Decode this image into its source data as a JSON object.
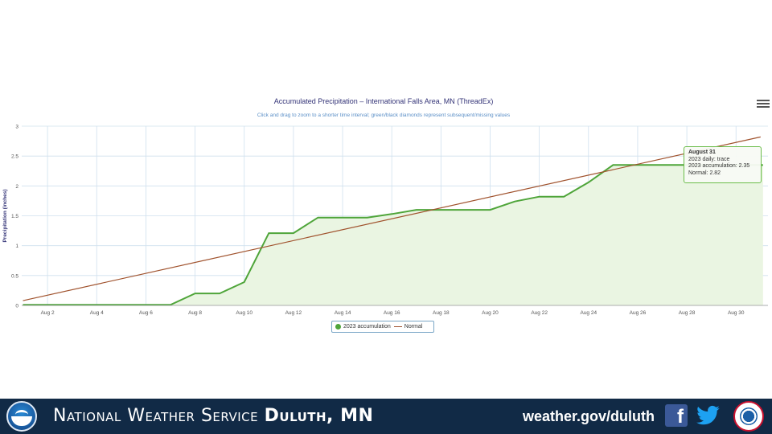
{
  "chart_data": {
    "type": "line",
    "title": "Accumulated Precipitation – International Falls Area, MN (ThreadEx)",
    "subtitle": "Click and drag to zoom to a shorter time interval; green/black diamonds represent subsequent/missing values",
    "ylabel": "Precipitation (inches)",
    "xlabel": "",
    "ylim": [
      0,
      3
    ],
    "y_ticks": [
      "0",
      "0.5",
      "1",
      "1.5",
      "2",
      "2.5",
      "3"
    ],
    "x_range": [
      1,
      31
    ],
    "x_ticks": [
      {
        "day": 2,
        "label": "Aug 2"
      },
      {
        "day": 4,
        "label": "Aug 4"
      },
      {
        "day": 6,
        "label": "Aug 6"
      },
      {
        "day": 8,
        "label": "Aug 8"
      },
      {
        "day": 10,
        "label": "Aug 10"
      },
      {
        "day": 12,
        "label": "Aug 12"
      },
      {
        "day": 14,
        "label": "Aug 14"
      },
      {
        "day": 16,
        "label": "Aug 16"
      },
      {
        "day": 18,
        "label": "Aug 18"
      },
      {
        "day": 20,
        "label": "Aug 20"
      },
      {
        "day": 22,
        "label": "Aug 22"
      },
      {
        "day": 24,
        "label": "Aug 24"
      },
      {
        "day": 26,
        "label": "Aug 26"
      },
      {
        "day": 28,
        "label": "Aug 28"
      },
      {
        "day": 30,
        "label": "Aug 30"
      }
    ],
    "grid": true,
    "legend_position": "bottom-center",
    "series": [
      {
        "name": "2023 accumulation",
        "color": "#4fa53a",
        "fill": "#eaf5e2",
        "x": [
          1,
          2,
          3,
          4,
          5,
          6,
          7,
          8,
          9,
          10,
          11,
          12,
          13,
          14,
          15,
          16,
          17,
          18,
          19,
          20,
          21,
          22,
          23,
          24,
          25,
          26,
          27,
          28,
          29,
          30,
          31
        ],
        "values": [
          0.01,
          0.01,
          0.01,
          0.01,
          0.01,
          0.01,
          0.01,
          0.2,
          0.2,
          0.39,
          1.21,
          1.21,
          1.47,
          1.47,
          1.47,
          1.53,
          1.6,
          1.6,
          1.6,
          1.6,
          1.74,
          1.82,
          1.82,
          2.06,
          2.35,
          2.35,
          2.35,
          2.35,
          2.35,
          2.35,
          2.35
        ]
      },
      {
        "name": "Normal",
        "color": "#a0522d",
        "x": [
          1,
          31
        ],
        "values": [
          0.08,
          2.82
        ]
      }
    ],
    "tooltip": {
      "title": "August 31",
      "lines": [
        "2023 daily: trace",
        "2023 accumulation: 2.35",
        "Normal: 2.82"
      ]
    }
  },
  "footer": {
    "title_regular": "National Weather Service",
    "title_bold": "Duluth, MN",
    "url": "weather.gov/duluth",
    "background": "#112a46"
  },
  "icons": {
    "menu": "hamburger-menu-icon",
    "facebook": "facebook-icon",
    "twitter": "twitter-icon",
    "noaa": "noaa-logo",
    "nws": "nws-logo"
  }
}
